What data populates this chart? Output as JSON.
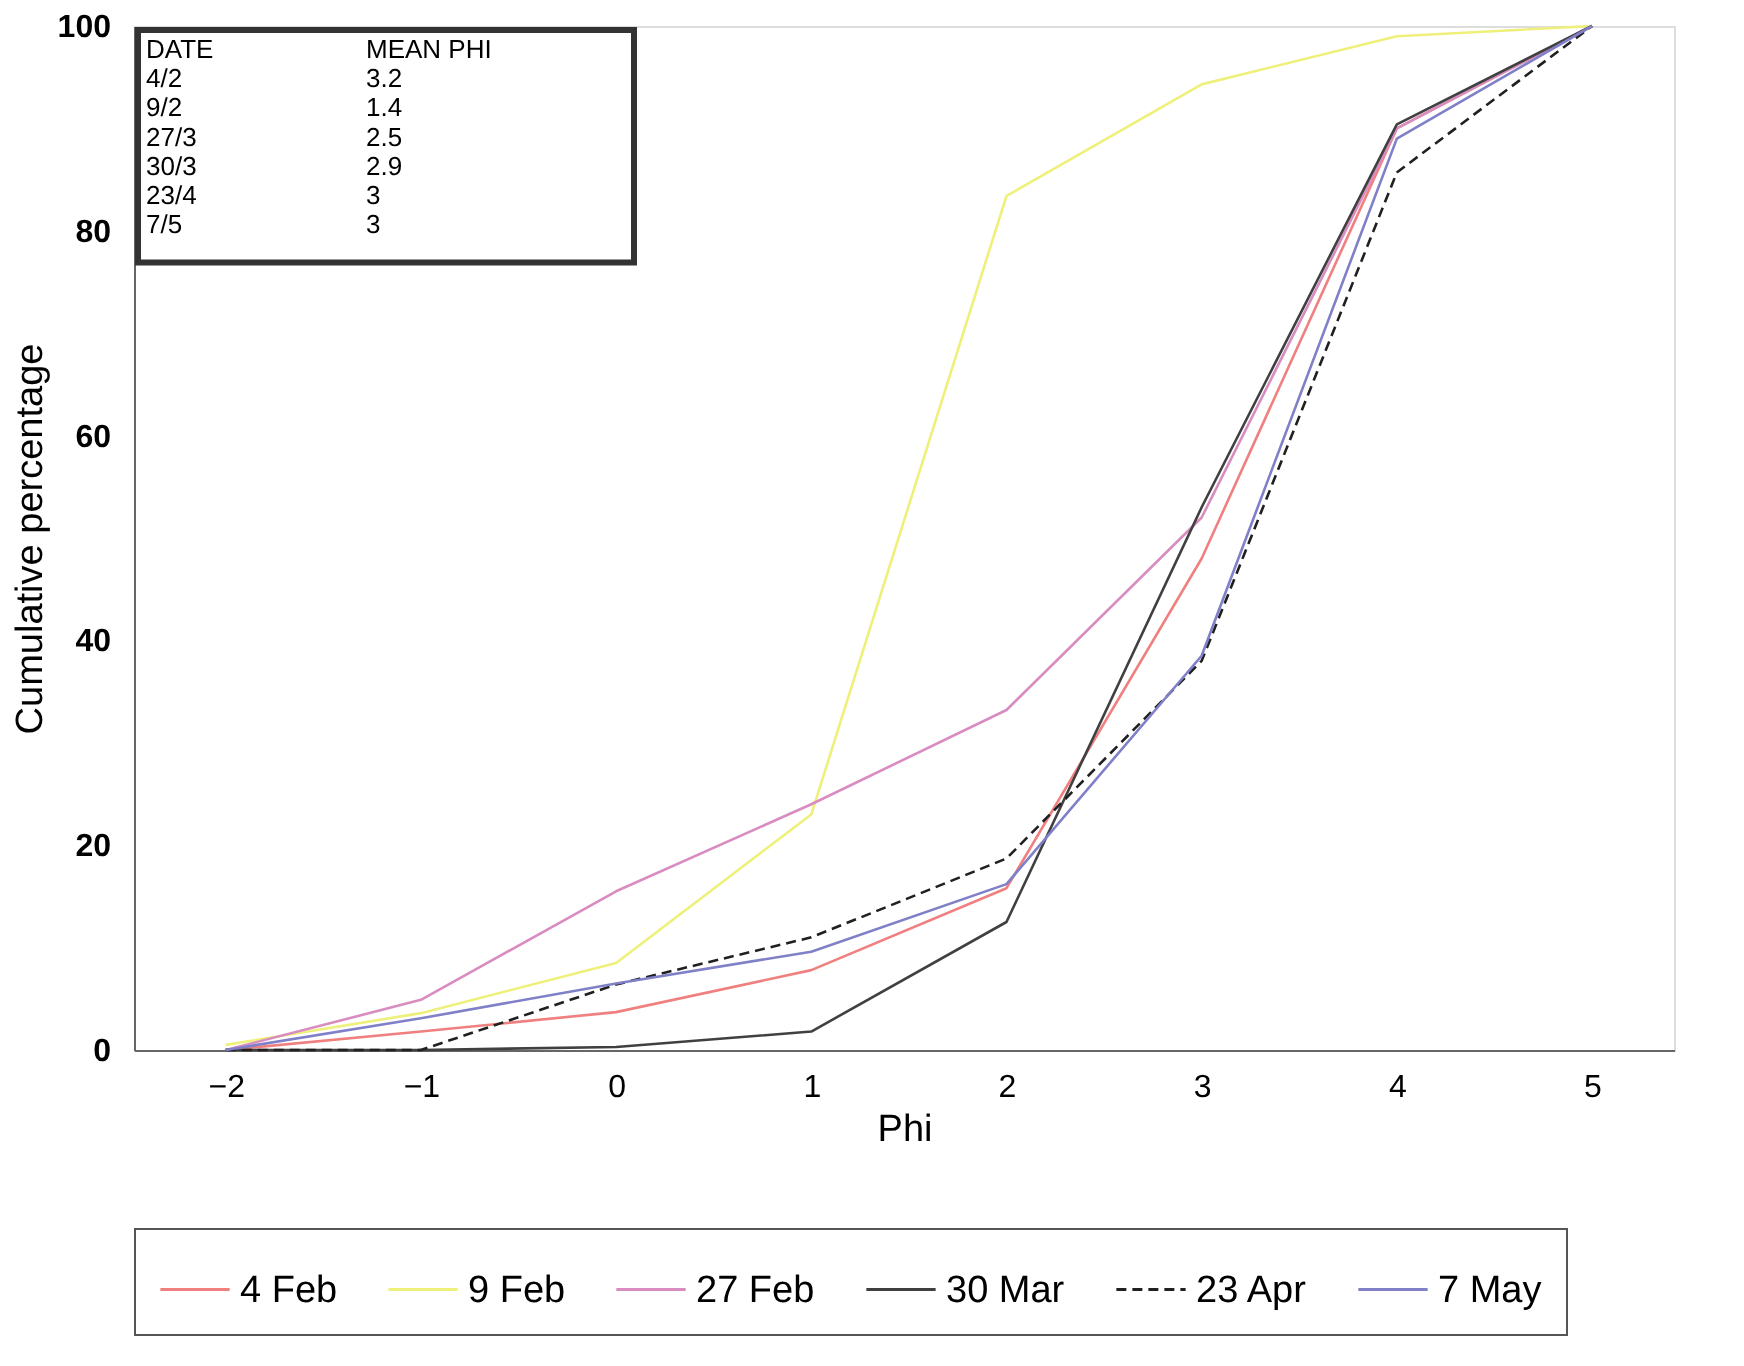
{
  "chart_data": {
    "type": "line",
    "xlabel": "Phi",
    "ylabel": "Cumulative percentage",
    "x": [
      -2,
      -1,
      0,
      1,
      2,
      3,
      4,
      5
    ],
    "xlim": [
      -2.47,
      5.42
    ],
    "xticks": [
      -2,
      -1,
      0,
      1,
      2,
      3,
      4,
      5
    ],
    "ylim": [
      0,
      100
    ],
    "yticks": [
      0,
      20,
      40,
      60,
      80,
      100
    ],
    "grid": false,
    "legend": "bottom",
    "marker": "none",
    "annotations": [
      "DATE",
      "MEAN PHI",
      "4/2",
      "3.2",
      "9/2",
      "1.4",
      "27/3",
      "2.5",
      "30/3",
      "2.9",
      "23/4",
      "3",
      "7/5",
      "3"
    ],
    "series": [
      {
        "name": "4 Feb",
        "color": "#f08080",
        "line_style": "solid",
        "values": [
          0,
          1.8,
          3.7,
          7.8,
          15.8,
          48,
          90,
          100
        ]
      },
      {
        "name": "9 Feb",
        "color": "#eef07a",
        "line_style": "solid",
        "values": [
          0.5,
          3.6,
          8.5,
          23,
          83.4,
          94.3,
          99,
          100
        ]
      },
      {
        "name": "27 Feb",
        "color": "#d98cc0",
        "line_style": "solid",
        "values": [
          0,
          4.9,
          15.5,
          24,
          33.2,
          52,
          90,
          100
        ]
      },
      {
        "name": "30 Mar",
        "color": "#404040",
        "line_style": "solid",
        "values": [
          0,
          0,
          0.3,
          1.8,
          12.5,
          53,
          90.4,
          100
        ]
      },
      {
        "name": "23 Apr",
        "color": "#202020",
        "line_style": "dashed",
        "values": [
          0,
          0,
          6.4,
          11,
          18.7,
          38,
          85.7,
          100
        ]
      },
      {
        "name": "7 May",
        "color": "#8080c8",
        "line_style": "solid",
        "values": [
          0,
          3.1,
          6.5,
          9.6,
          16.2,
          38.5,
          89,
          100
        ]
      }
    ]
  }
}
